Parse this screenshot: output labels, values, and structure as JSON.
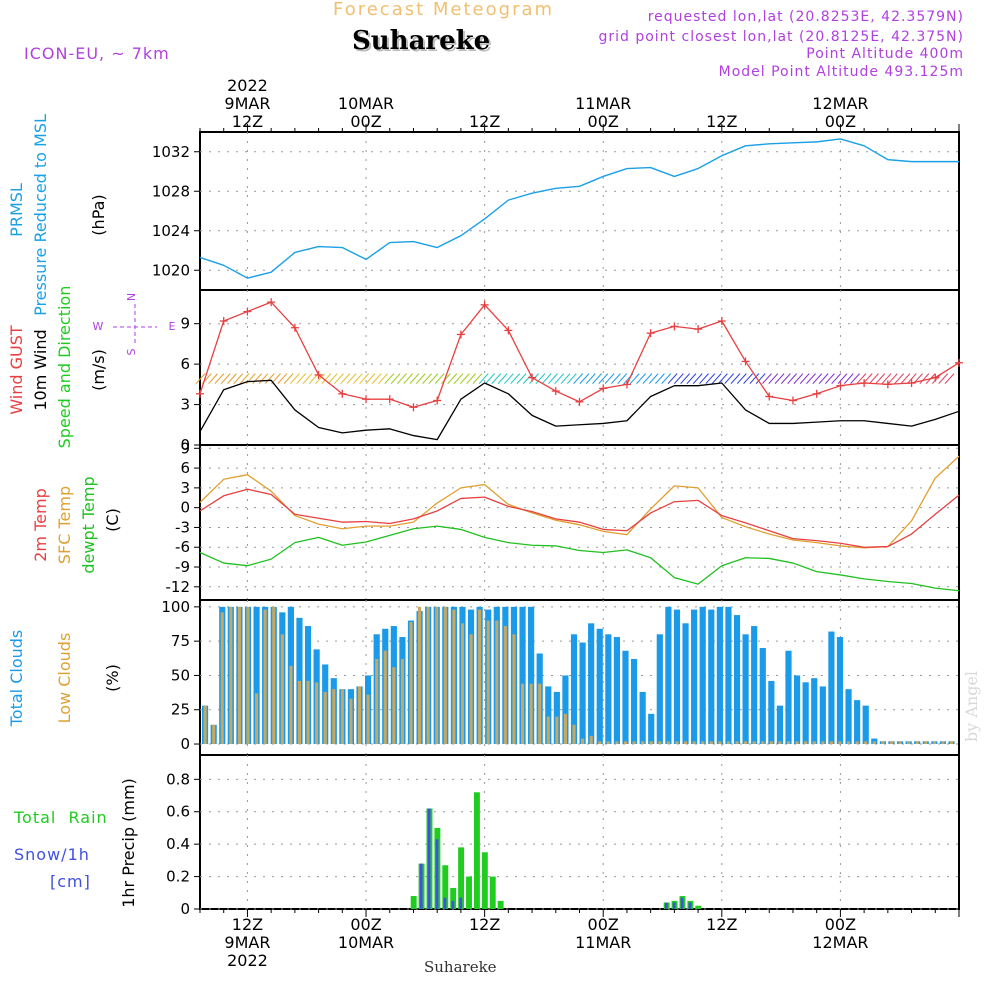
{
  "header": {
    "product": "Forecast Meteogram",
    "location": "Suhareke",
    "model": "ICON-EU, ~ 7km",
    "requested": "requested lon,lat (20.8253E, 42.3579N)",
    "grid_point": "grid point closest lon,lat (20.8125E, 42.375N)",
    "point_altitude": "Point Altitude 400m",
    "model_altitude": "Model Point Altitude 493.125m",
    "watermark": "by Angel",
    "footer_location": "Suhareke"
  },
  "colors": {
    "pressure": "#1aa0e6",
    "gust": "#e84040",
    "wind": "#000000",
    "temp2m": "#e84040",
    "sfc_temp": "#e0a030",
    "dewpt": "#20c020",
    "total_clouds": "#1a9ae8",
    "low_clouds": "#c8a860",
    "rain": "#20cc20",
    "snow": "#4050e0",
    "label_purple": "#b040e0",
    "header_orange": "#f0c070"
  },
  "chart_data": [
    {
      "type": "line",
      "panel": "pressure",
      "ylabel_lines": [
        "PRMSL",
        "Pressure Reduced to MSL"
      ],
      "unit": "(hPa)",
      "yticks": [
        "1020",
        "1024",
        "1028",
        "1032"
      ],
      "ylim": [
        1018,
        1034
      ],
      "x_hours": [
        0,
        3,
        6,
        9,
        12,
        15,
        18,
        21,
        24,
        27,
        30,
        33,
        36,
        39,
        42,
        45,
        48,
        51,
        54,
        57,
        60,
        63,
        66,
        69,
        72,
        75,
        78,
        81,
        84,
        87,
        90,
        93,
        96
      ],
      "series": [
        {
          "values": [
            1021.3,
            1020.5,
            1019.2,
            1019.8,
            1021.8,
            1022.4,
            1022.3,
            1021.1,
            1022.8,
            1022.9,
            1022.3,
            1023.5,
            1025.2,
            1027.1,
            1027.8,
            1028.3,
            1028.5,
            1029.5,
            1030.3,
            1030.4,
            1029.5,
            1030.3,
            1031.6,
            1032.6,
            1032.8,
            1032.9,
            1033.0,
            1033.3,
            1032.6,
            1031.2,
            1031.0,
            1031.0,
            1031.0
          ]
        }
      ]
    },
    {
      "type": "line",
      "panel": "wind",
      "ylabel_lines": [
        "Wind GUST",
        "10m Wind",
        "Speed and Direction"
      ],
      "unit": "(m/s)",
      "compass": {
        "w": "W",
        "e": "E",
        "n": "N",
        "s": "S"
      },
      "yticks": [
        "0",
        "3",
        "6",
        "9"
      ],
      "ylim": [
        0,
        11.5
      ],
      "x_hours": [
        0,
        3,
        6,
        9,
        12,
        15,
        18,
        21,
        24,
        27,
        30,
        33,
        36,
        39,
        42,
        45,
        48,
        51,
        54,
        57,
        60,
        63,
        66,
        69,
        72,
        75,
        78,
        81,
        84,
        87,
        90,
        93,
        96
      ],
      "series": [
        {
          "name": "Wind GUST",
          "values": [
            3.8,
            9.2,
            9.9,
            10.6,
            8.7,
            5.2,
            3.8,
            3.4,
            3.4,
            2.8,
            3.3,
            8.2,
            10.4,
            8.5,
            5.0,
            4.0,
            3.2,
            4.2,
            4.5,
            8.3,
            8.8,
            8.6,
            9.2,
            6.2,
            3.6,
            3.3,
            3.8,
            4.4,
            4.6,
            4.5,
            4.6,
            5.0,
            6.1
          ]
        },
        {
          "name": "10m Wind",
          "values": [
            1.0,
            4.1,
            4.7,
            4.8,
            2.6,
            1.3,
            0.9,
            1.1,
            1.2,
            0.7,
            0.4,
            3.4,
            4.6,
            3.8,
            2.2,
            1.4,
            1.5,
            1.6,
            1.8,
            3.6,
            4.4,
            4.4,
            4.6,
            2.6,
            1.6,
            1.6,
            1.7,
            1.8,
            1.8,
            1.6,
            1.4,
            1.9,
            2.5
          ]
        }
      ],
      "direction_arrows": {
        "present": true,
        "height_ms": 5.0
      }
    },
    {
      "type": "line",
      "panel": "temperature",
      "ylabel_lines": [
        "2m Temp",
        "SFC Temp",
        "dewpt Temp"
      ],
      "unit": "(C)",
      "yticks": [
        "-12",
        "-9",
        "-6",
        "-3",
        "0",
        "3",
        "6",
        "9"
      ],
      "ylim": [
        -14,
        9.5
      ],
      "x_hours": [
        0,
        3,
        6,
        9,
        12,
        15,
        18,
        21,
        24,
        27,
        30,
        33,
        36,
        39,
        42,
        45,
        48,
        51,
        54,
        57,
        60,
        63,
        66,
        69,
        72,
        75,
        78,
        81,
        84,
        87,
        90,
        93,
        96
      ],
      "series": [
        {
          "name": "2m Temp",
          "values": [
            -0.5,
            1.8,
            2.8,
            2.0,
            -1.0,
            -1.6,
            -2.2,
            -2.1,
            -2.4,
            -1.7,
            -0.5,
            1.4,
            1.6,
            0.2,
            -0.6,
            -1.7,
            -2.2,
            -3.3,
            -3.5,
            -0.8,
            0.9,
            1.1,
            -1.2,
            -2.3,
            -3.5,
            -4.7,
            -5.0,
            -5.4,
            -6.0,
            -5.9,
            -4.0,
            -1.0,
            1.9
          ]
        },
        {
          "name": "SFC Temp",
          "values": [
            0.8,
            4.3,
            5.0,
            2.5,
            -1.2,
            -2.5,
            -3.2,
            -2.8,
            -2.8,
            -2.2,
            0.7,
            3.0,
            3.5,
            0.5,
            -0.8,
            -1.9,
            -2.6,
            -3.6,
            -4.1,
            -0.2,
            3.3,
            3.0,
            -1.5,
            -2.9,
            -4.0,
            -4.9,
            -5.3,
            -5.8,
            -6.1,
            -5.9,
            -2.0,
            4.5,
            7.8
          ]
        },
        {
          "name": "dewpt Temp",
          "values": [
            -6.8,
            -8.4,
            -8.8,
            -7.8,
            -5.3,
            -4.5,
            -5.7,
            -5.2,
            -4.2,
            -3.2,
            -2.8,
            -3.3,
            -4.5,
            -5.3,
            -5.7,
            -5.8,
            -6.5,
            -6.8,
            -6.4,
            -7.6,
            -10.6,
            -11.6,
            -8.8,
            -7.6,
            -7.7,
            -8.4,
            -9.7,
            -10.2,
            -10.8,
            -11.2,
            -11.5,
            -12.2,
            -12.6
          ]
        }
      ]
    },
    {
      "type": "bar",
      "panel": "clouds",
      "ylabel_lines": [
        "Total Clouds",
        "Low Clouds"
      ],
      "unit": "(%)",
      "yticks": [
        "0",
        "25",
        "50",
        "75",
        "100"
      ],
      "ylim": [
        -8,
        105
      ],
      "series": [
        {
          "name": "Total Clouds",
          "values": [
            28,
            14,
            100,
            100,
            100,
            100,
            100,
            100,
            100,
            96,
            100,
            92,
            86,
            69,
            58,
            48,
            40,
            40,
            42,
            50,
            80,
            84,
            86,
            78,
            90,
            97,
            100,
            100,
            100,
            100,
            100,
            98,
            100,
            98,
            100,
            100,
            100,
            100,
            100,
            66,
            42,
            38,
            50,
            80,
            74,
            88,
            84,
            80,
            78,
            68,
            62,
            38,
            22,
            80,
            100,
            98,
            88,
            98,
            100,
            98,
            100,
            100,
            94,
            80,
            86,
            70,
            46,
            28,
            68,
            50,
            45,
            48,
            42,
            82,
            78,
            40,
            32,
            28,
            4,
            2,
            2,
            2,
            2,
            2,
            2,
            2,
            2,
            2
          ]
        },
        {
          "name": "Low Clouds",
          "values": [
            28,
            14,
            96,
            100,
            100,
            100,
            37,
            98,
            100,
            80,
            57,
            46,
            46,
            45,
            38,
            40,
            40,
            33,
            42,
            36,
            62,
            68,
            56,
            62,
            89,
            100,
            100,
            100,
            100,
            98,
            88,
            80,
            98,
            90,
            90,
            86,
            80,
            44,
            44,
            44,
            20,
            20,
            22,
            14,
            4,
            6,
            2,
            2,
            2,
            2,
            2,
            2,
            2,
            2,
            2,
            2,
            2,
            2,
            2,
            2,
            2,
            2,
            2,
            2,
            2,
            2,
            2,
            2,
            2,
            2,
            2,
            2,
            2,
            2,
            2,
            2,
            2,
            2,
            2,
            2,
            2,
            2,
            2,
            2,
            2,
            2,
            2,
            2,
            2
          ]
        }
      ]
    },
    {
      "type": "bar",
      "panel": "precipitation",
      "ylabel_lines": [
        "1hr Precip (mm)"
      ],
      "side_labels": {
        "rain": "Total  Rain",
        "snow": "Snow/1h",
        "snow_unit": "[cm]"
      },
      "yticks": [
        "0",
        "0.2",
        "0.4",
        "0.6",
        "0.8"
      ],
      "ylim": [
        0,
        0.95
      ],
      "series": [
        {
          "name": "Total Rain",
          "points": [
            [
              27,
              0.08
            ],
            [
              28,
              0.28
            ],
            [
              29,
              0.62
            ],
            [
              30,
              0.5
            ],
            [
              31,
              0.27
            ],
            [
              32,
              0.13
            ],
            [
              33,
              0.38
            ],
            [
              34,
              0.2
            ],
            [
              35,
              0.72
            ],
            [
              36,
              0.35
            ],
            [
              37,
              0.2
            ],
            [
              38,
              0.05
            ],
            [
              59,
              0.04
            ],
            [
              60,
              0.05
            ],
            [
              61,
              0.08
            ],
            [
              62,
              0.05
            ],
            [
              63,
              0.02
            ]
          ]
        },
        {
          "name": "Snow/1h",
          "points": [
            [
              28,
              0.28
            ],
            [
              29,
              0.62
            ],
            [
              30,
              0.43
            ],
            [
              31,
              0.07
            ],
            [
              32,
              0.05
            ],
            [
              33,
              0.07
            ],
            [
              59,
              0.04
            ],
            [
              60,
              0.04
            ],
            [
              61,
              0.07
            ],
            [
              62,
              0.04
            ]
          ]
        }
      ]
    }
  ],
  "time_axis": {
    "top": [
      {
        "hour": 6,
        "lines": [
          "2022",
          "9MAR",
          "12Z"
        ]
      },
      {
        "hour": 21,
        "lines": [
          "10MAR",
          "00Z"
        ]
      },
      {
        "hour": 36,
        "lines": [
          "12Z"
        ]
      },
      {
        "hour": 51,
        "lines": [
          "11MAR",
          "00Z"
        ]
      },
      {
        "hour": 66,
        "lines": [
          "12Z"
        ]
      },
      {
        "hour": 81,
        "lines": [
          "12MAR",
          "00Z"
        ]
      }
    ],
    "bottom": [
      {
        "hour": 6,
        "lines": [
          "12Z",
          "9MAR",
          "2022"
        ]
      },
      {
        "hour": 21,
        "lines": [
          "00Z",
          "10MAR"
        ]
      },
      {
        "hour": 36,
        "lines": [
          "12Z"
        ]
      },
      {
        "hour": 51,
        "lines": [
          "00Z",
          "11MAR"
        ]
      },
      {
        "hour": 66,
        "lines": [
          "12Z"
        ]
      },
      {
        "hour": 81,
        "lines": [
          "00Z",
          "12MAR"
        ]
      }
    ]
  }
}
